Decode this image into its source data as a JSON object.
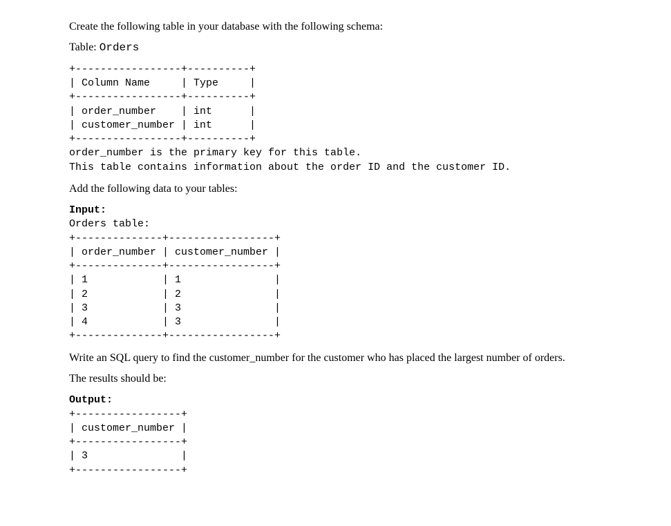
{
  "intro": {
    "line1": "Create the following table in your database with the following schema:",
    "line2_prefix": "Table: ",
    "table_name": "Orders"
  },
  "schema_table": {
    "border_top": "+-----------------+----------+",
    "header": "| Column Name     | Type     |",
    "border_mid": "+-----------------+----------+",
    "row1": "| order_number    | int      |",
    "row2": "| customer_number | int      |",
    "border_bot": "+-----------------+----------+",
    "note1": "order_number is the primary key for this table.",
    "note2": "This table contains information about the order ID and the customer ID."
  },
  "add_data_text": "Add the following data to your tables:",
  "input_table": {
    "label1": "Input:",
    "label2": "Orders table:",
    "border_top": "+--------------+-----------------+",
    "header": "| order_number | customer_number |",
    "border_mid": "+--------------+-----------------+",
    "row1": "| 1            | 1               |",
    "row2": "| 2            | 2               |",
    "row3": "| 3            | 3               |",
    "row4": "| 4            | 3               |",
    "border_bot": "+--------------+-----------------+"
  },
  "query_text": "Write an SQL query to find the customer_number for the customer who has placed the largest number of orders.",
  "results_text": "The results should be:",
  "output_table": {
    "label": "Output:",
    "border_top": "+-----------------+",
    "header": "| customer_number |",
    "border_mid": "+-----------------+",
    "row1": "| 3               |",
    "border_bot": "+-----------------+"
  }
}
